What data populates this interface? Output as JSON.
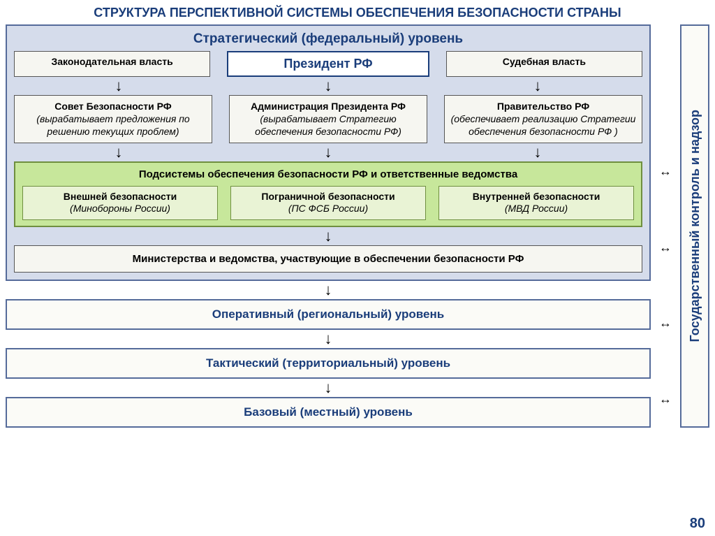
{
  "title": "СТРУКТУРА ПЕРСПЕКТИВНОЙ СИСТЕМЫ ОБЕСПЕЧЕНИЯ БЕЗОПАСНОСТИ  СТРАНЫ",
  "page_number": "80",
  "colors": {
    "title_color": "#1a3d7a",
    "panel_bg": "#d5dceb",
    "panel_border": "#556b9a",
    "box_bg": "#f6f6f1",
    "box_border": "#555555",
    "president_border": "#1a3d7a",
    "subsystems_bg": "#c7e79b",
    "subsystems_border": "#6f8f3f",
    "subbox_bg": "#e9f3d5",
    "level_bg": "#fbfbf7"
  },
  "strategic": {
    "label": "Стратегический (федеральный) уровень",
    "top": {
      "legislative": "Законодательная власть",
      "president": "Президент РФ",
      "judicial": "Судебная  власть"
    },
    "mid": {
      "security_council": {
        "title": "Совет Безопасности РФ",
        "note": "(вырабатывает предложения по решению текущих проблем)"
      },
      "administration": {
        "title": "Администрация Президента РФ",
        "note": "(вырабатывает Стратегию обеспечения безопасности РФ)"
      },
      "government": {
        "title": "Правительство РФ",
        "note": "(обеспечивает реализацию Стратегии  обеспечения безопасности РФ )"
      }
    },
    "subsystems": {
      "title": "Подсистемы обеспечения безопасности РФ и ответственные ведомства",
      "items": [
        {
          "title": "Внешней безопасности",
          "note": "(Минобороны России)"
        },
        {
          "title": "Пограничной безопасности",
          "note": "(ПС ФСБ России)"
        },
        {
          "title": "Внутренней безопасности",
          "note": "(МВД России)"
        }
      ]
    },
    "ministries": "Министерства и ведомства, участвующие в обеспечении безопасности РФ"
  },
  "levels": {
    "operational": "Оперативный (региональный) уровень",
    "tactical": "Тактический (территориальный) уровень",
    "base": "Базовый (местный) уровень"
  },
  "side_panel": "Государственный контроль и надзор",
  "glyphs": {
    "down": "↓",
    "harr": "↔"
  }
}
